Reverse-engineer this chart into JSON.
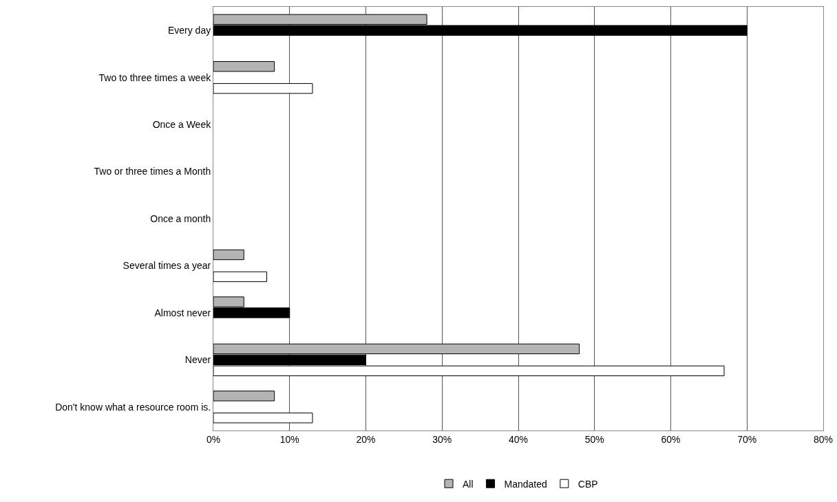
{
  "chart_data": {
    "type": "bar",
    "orientation": "horizontal",
    "categories": [
      "Every day",
      "Two to three times a week",
      "Once a Week",
      "Two or three times a Month",
      "Once a month",
      "Several times a year",
      "Almost never",
      "Never",
      "Don't know what a resource room is."
    ],
    "series": [
      {
        "name": "All",
        "color": "#b4b4b4",
        "values": [
          28,
          8,
          null,
          null,
          null,
          4,
          4,
          48,
          8
        ]
      },
      {
        "name": "Mandated",
        "color": "#000000",
        "values": [
          70,
          null,
          null,
          null,
          null,
          null,
          10,
          20,
          null
        ]
      },
      {
        "name": "CBP",
        "color": "#ffffff",
        "values": [
          null,
          13,
          null,
          null,
          null,
          7,
          null,
          67,
          13
        ]
      }
    ],
    "xlim": [
      0,
      80
    ],
    "xticks": [
      {
        "value": 0,
        "label": "0%"
      },
      {
        "value": 10,
        "label": "10%"
      },
      {
        "value": 20,
        "label": "20%"
      },
      {
        "value": 30,
        "label": "30%"
      },
      {
        "value": 40,
        "label": "40%"
      },
      {
        "value": 50,
        "label": "50%"
      },
      {
        "value": 60,
        "label": "60%"
      },
      {
        "value": 70,
        "label": "70%"
      },
      {
        "value": 80,
        "label": "80%"
      }
    ],
    "grid": "x",
    "legend": "bottom"
  }
}
